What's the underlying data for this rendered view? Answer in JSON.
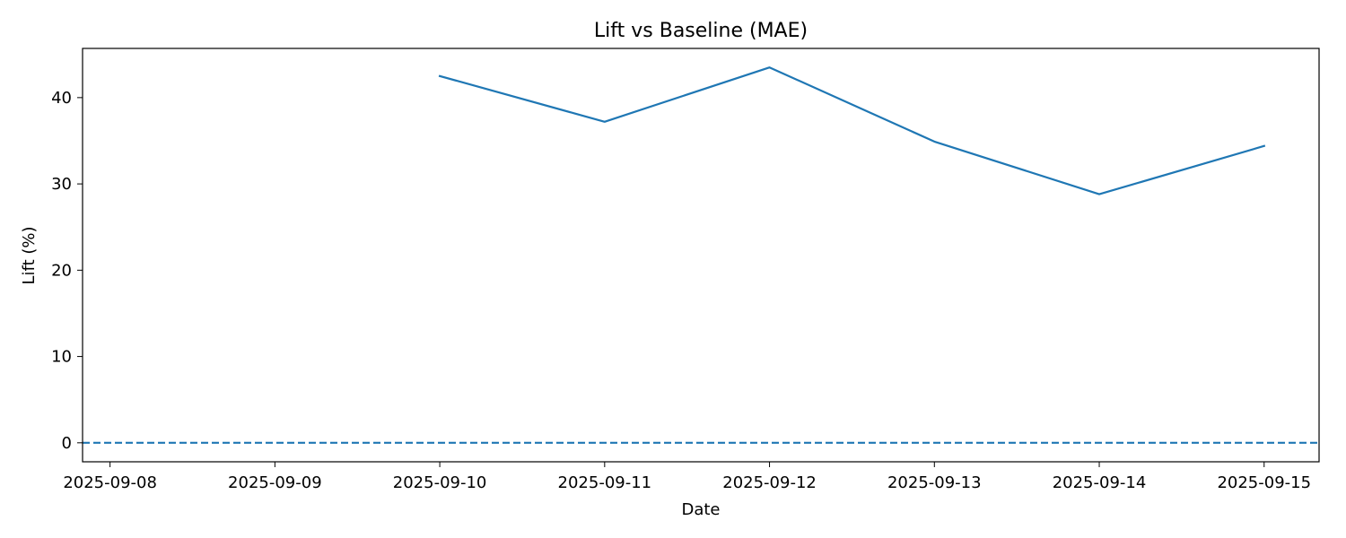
{
  "chart_data": {
    "type": "line",
    "title": "Lift vs Baseline (MAE)",
    "xlabel": "Date",
    "ylabel": "Lift (%)",
    "x_ticks": [
      "2025-09-08",
      "2025-09-09",
      "2025-09-10",
      "2025-09-11",
      "2025-09-12",
      "2025-09-13",
      "2025-09-14",
      "2025-09-15"
    ],
    "y_ticks": [
      0,
      10,
      20,
      30,
      40
    ],
    "xlim": [
      "2025-09-07T20:00",
      "2025-09-15T08:00"
    ],
    "ylim": [
      -2.2,
      45.7
    ],
    "grid": false,
    "series": [
      {
        "color": "#1f77b4",
        "style": "solid",
        "x": [
          "2025-09-10",
          "2025-09-11",
          "2025-09-12",
          "2025-09-13",
          "2025-09-14",
          "2025-09-15"
        ],
        "values": [
          42.5,
          37.2,
          43.5,
          34.9,
          28.8,
          34.4
        ]
      }
    ],
    "reference_line": {
      "y": 0,
      "style": "dashed",
      "color": "#1f77b4"
    }
  }
}
